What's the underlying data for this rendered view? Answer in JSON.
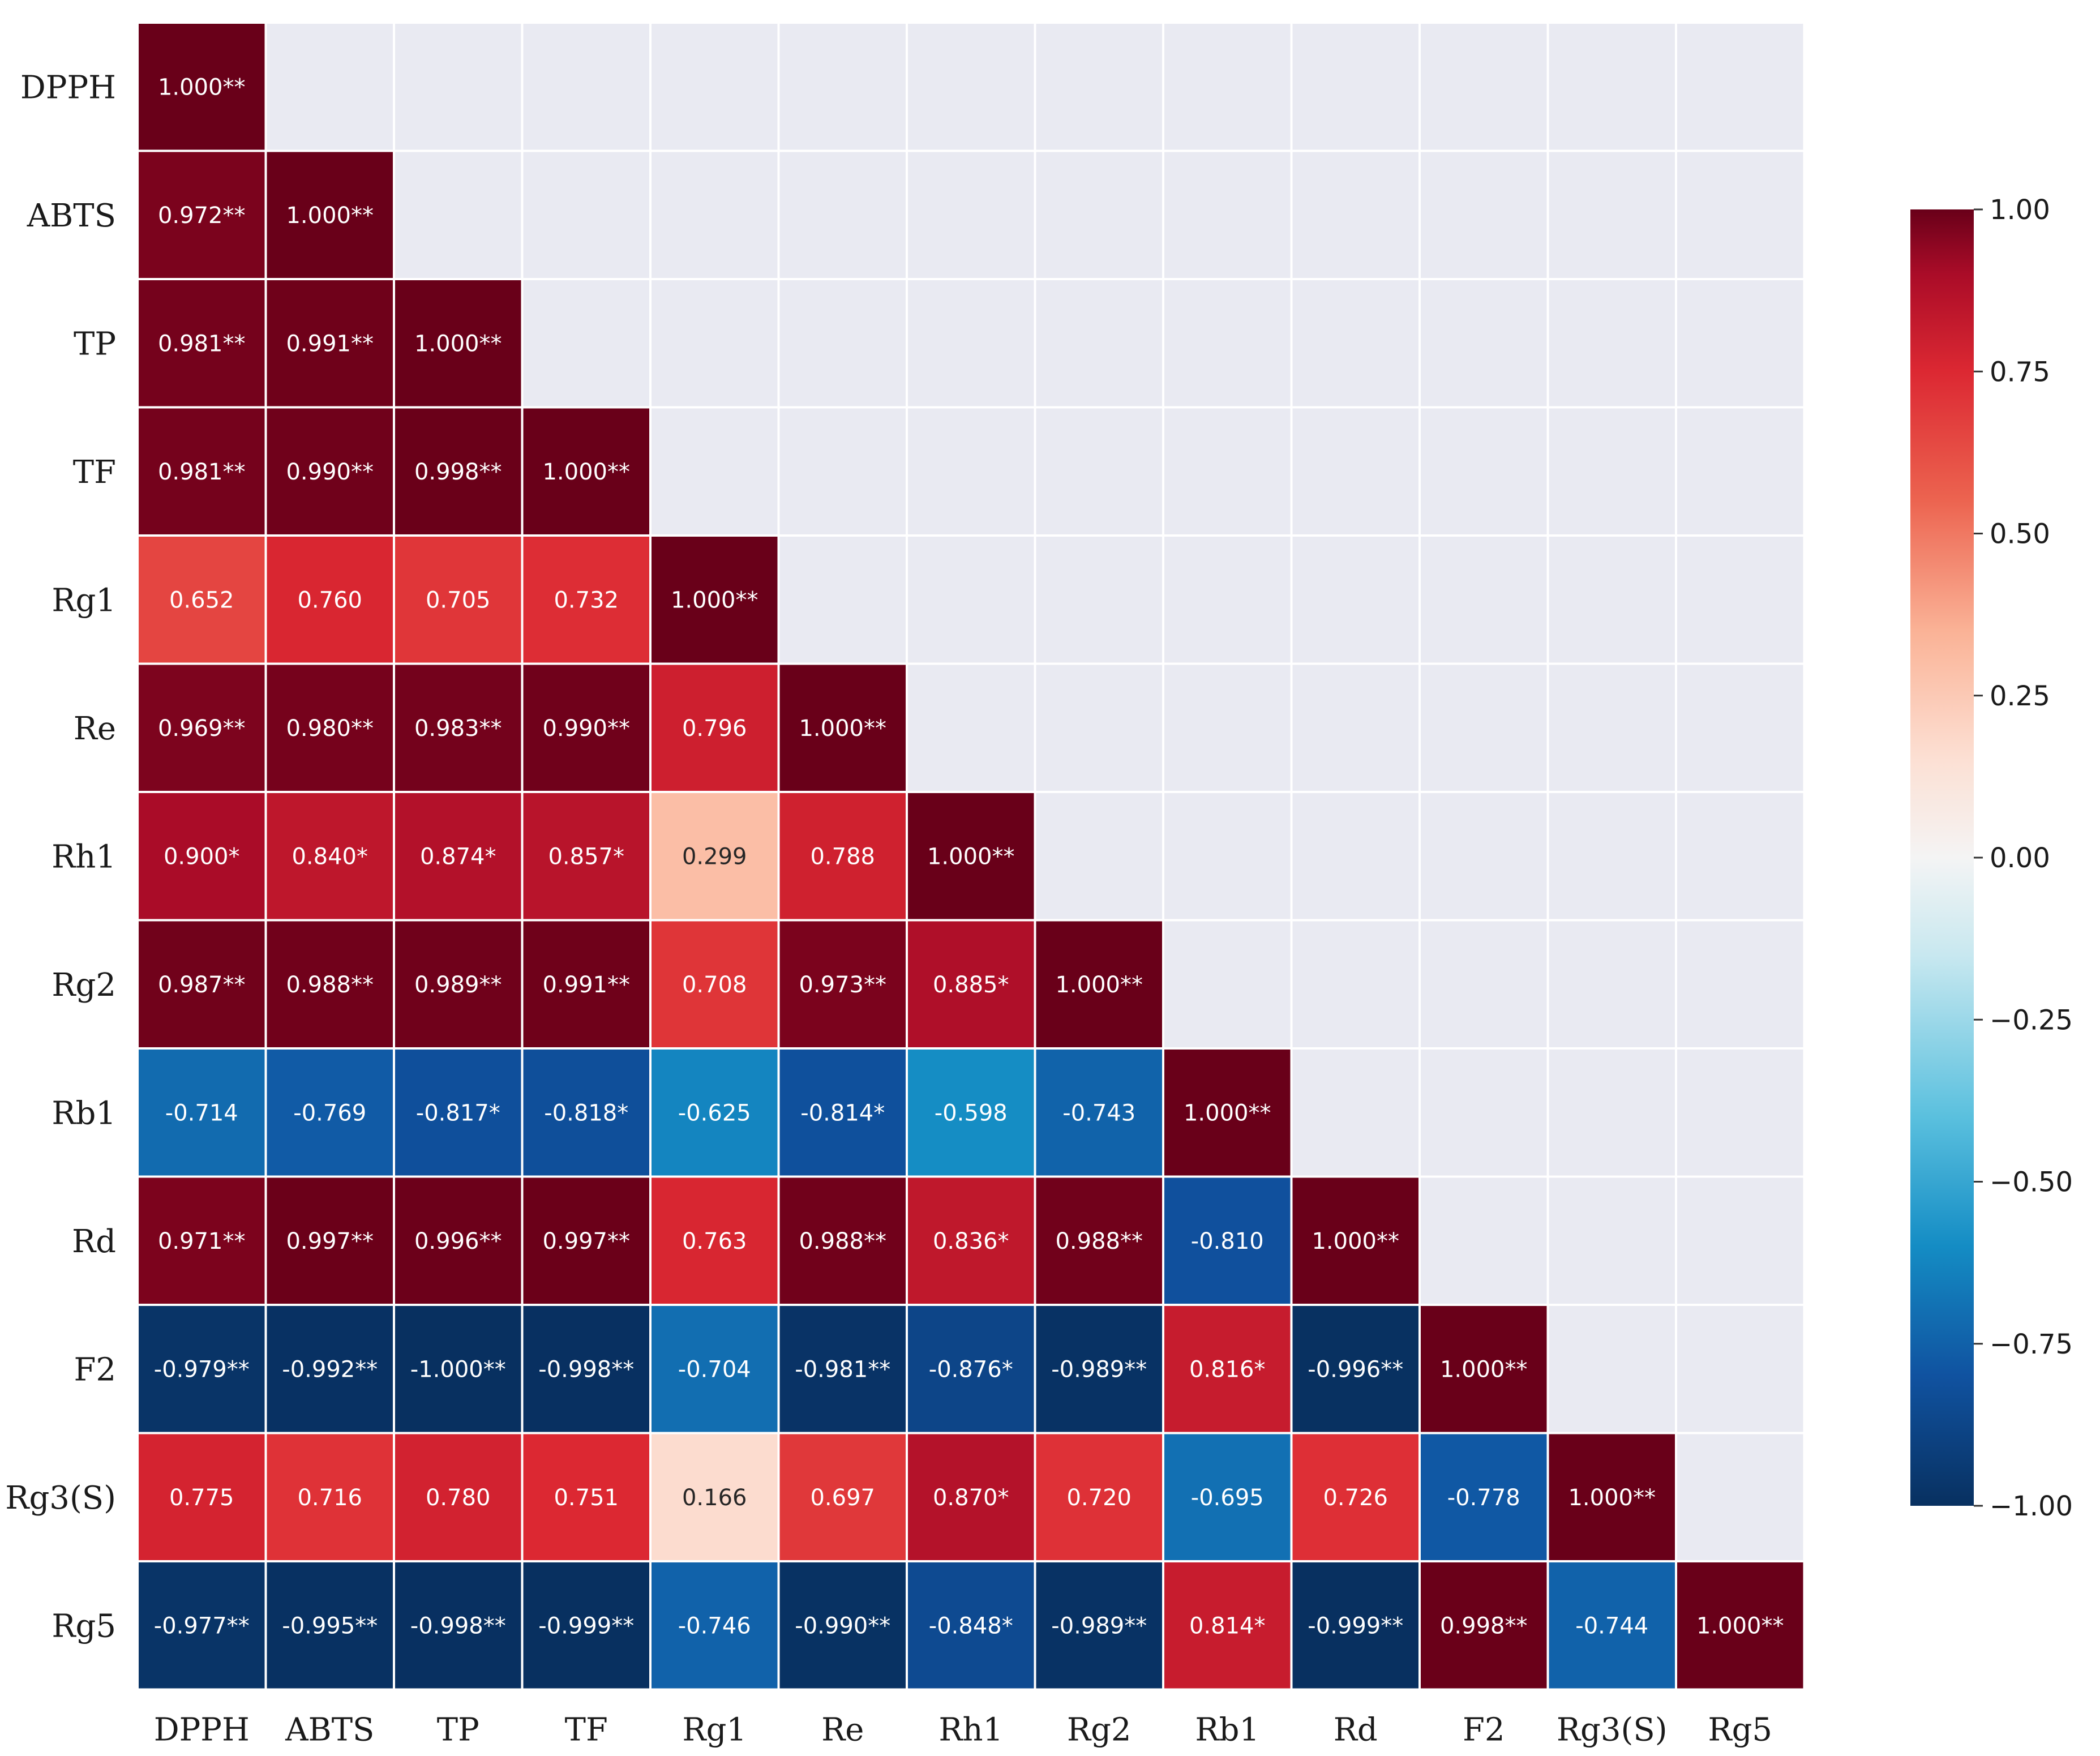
{
  "chart_data": {
    "type": "heatmap",
    "subtype": "lower-triangular correlation matrix",
    "variables": [
      "DPPH",
      "ABTS",
      "TP",
      "TF",
      "Rg1",
      "Re",
      "Rh1",
      "Rg2",
      "Rb1",
      "Rd",
      "F2",
      "Rg3(S)",
      "Rg5"
    ],
    "cells": [
      [
        {
          "v": 1.0,
          "label": "1.000**"
        }
      ],
      [
        {
          "v": 0.972,
          "label": "0.972**"
        },
        {
          "v": 1.0,
          "label": "1.000**"
        }
      ],
      [
        {
          "v": 0.981,
          "label": "0.981**"
        },
        {
          "v": 0.991,
          "label": "0.991**"
        },
        {
          "v": 1.0,
          "label": "1.000**"
        }
      ],
      [
        {
          "v": 0.981,
          "label": "0.981**"
        },
        {
          "v": 0.99,
          "label": "0.990**"
        },
        {
          "v": 0.998,
          "label": "0.998**"
        },
        {
          "v": 1.0,
          "label": "1.000**"
        }
      ],
      [
        {
          "v": 0.652,
          "label": "0.652"
        },
        {
          "v": 0.76,
          "label": "0.760"
        },
        {
          "v": 0.705,
          "label": "0.705"
        },
        {
          "v": 0.732,
          "label": "0.732"
        },
        {
          "v": 1.0,
          "label": "1.000**"
        }
      ],
      [
        {
          "v": 0.969,
          "label": "0.969**"
        },
        {
          "v": 0.98,
          "label": "0.980**"
        },
        {
          "v": 0.983,
          "label": "0.983**"
        },
        {
          "v": 0.99,
          "label": "0.990**"
        },
        {
          "v": 0.796,
          "label": "0.796"
        },
        {
          "v": 1.0,
          "label": "1.000**"
        }
      ],
      [
        {
          "v": 0.9,
          "label": "0.900*"
        },
        {
          "v": 0.84,
          "label": "0.840*"
        },
        {
          "v": 0.874,
          "label": "0.874*"
        },
        {
          "v": 0.857,
          "label": "0.857*"
        },
        {
          "v": 0.299,
          "label": "0.299"
        },
        {
          "v": 0.788,
          "label": "0.788"
        },
        {
          "v": 1.0,
          "label": "1.000**"
        }
      ],
      [
        {
          "v": 0.987,
          "label": "0.987**"
        },
        {
          "v": 0.988,
          "label": "0.988**"
        },
        {
          "v": 0.989,
          "label": "0.989**"
        },
        {
          "v": 0.991,
          "label": "0.991**"
        },
        {
          "v": 0.708,
          "label": "0.708"
        },
        {
          "v": 0.973,
          "label": "0.973**"
        },
        {
          "v": 0.885,
          "label": "0.885*"
        },
        {
          "v": 1.0,
          "label": "1.000**"
        }
      ],
      [
        {
          "v": -0.714,
          "label": "-0.714"
        },
        {
          "v": -0.769,
          "label": "-0.769"
        },
        {
          "v": -0.817,
          "label": "-0.817*"
        },
        {
          "v": -0.818,
          "label": "-0.818*"
        },
        {
          "v": -0.625,
          "label": "-0.625"
        },
        {
          "v": -0.814,
          "label": "-0.814*"
        },
        {
          "v": -0.598,
          "label": "-0.598"
        },
        {
          "v": -0.743,
          "label": "-0.743"
        },
        {
          "v": 1.0,
          "label": "1.000**"
        }
      ],
      [
        {
          "v": 0.971,
          "label": "0.971**"
        },
        {
          "v": 0.997,
          "label": "0.997**"
        },
        {
          "v": 0.996,
          "label": "0.996**"
        },
        {
          "v": 0.997,
          "label": "0.997**"
        },
        {
          "v": 0.763,
          "label": "0.763"
        },
        {
          "v": 0.988,
          "label": "0.988**"
        },
        {
          "v": 0.836,
          "label": "0.836*"
        },
        {
          "v": 0.988,
          "label": "0.988**"
        },
        {
          "v": -0.81,
          "label": "-0.810"
        },
        {
          "v": 1.0,
          "label": "1.000**"
        }
      ],
      [
        {
          "v": -0.979,
          "label": "-0.979**"
        },
        {
          "v": -0.992,
          "label": "-0.992**"
        },
        {
          "v": -1.0,
          "label": "-1.000**"
        },
        {
          "v": -0.998,
          "label": "-0.998**"
        },
        {
          "v": -0.704,
          "label": "-0.704"
        },
        {
          "v": -0.981,
          "label": "-0.981**"
        },
        {
          "v": -0.876,
          "label": "-0.876*"
        },
        {
          "v": -0.989,
          "label": "-0.989**"
        },
        {
          "v": 0.816,
          "label": "0.816*"
        },
        {
          "v": -0.996,
          "label": "-0.996**"
        },
        {
          "v": 1.0,
          "label": "1.000**"
        }
      ],
      [
        {
          "v": 0.775,
          "label": "0.775"
        },
        {
          "v": 0.716,
          "label": "0.716"
        },
        {
          "v": 0.78,
          "label": "0.780"
        },
        {
          "v": 0.751,
          "label": "0.751"
        },
        {
          "v": 0.166,
          "label": "0.166"
        },
        {
          "v": 0.697,
          "label": "0.697"
        },
        {
          "v": 0.87,
          "label": "0.870*"
        },
        {
          "v": 0.72,
          "label": "0.720"
        },
        {
          "v": -0.695,
          "label": "-0.695"
        },
        {
          "v": 0.726,
          "label": "0.726"
        },
        {
          "v": -0.778,
          "label": "-0.778"
        },
        {
          "v": 1.0,
          "label": "1.000**"
        }
      ],
      [
        {
          "v": -0.977,
          "label": "-0.977**"
        },
        {
          "v": -0.995,
          "label": "-0.995**"
        },
        {
          "v": -0.998,
          "label": "-0.998**"
        },
        {
          "v": -0.999,
          "label": "-0.999**"
        },
        {
          "v": -0.746,
          "label": "-0.746"
        },
        {
          "v": -0.99,
          "label": "-0.990**"
        },
        {
          "v": -0.848,
          "label": "-0.848*"
        },
        {
          "v": -0.989,
          "label": "-0.989**"
        },
        {
          "v": 0.814,
          "label": "0.814*"
        },
        {
          "v": -0.999,
          "label": "-0.999**"
        },
        {
          "v": 0.998,
          "label": "0.998**"
        },
        {
          "v": -0.744,
          "label": "-0.744"
        },
        {
          "v": 1.0,
          "label": "1.000**"
        }
      ]
    ],
    "value_range": [
      -1.0,
      1.0
    ],
    "colormap": "RdBu_r",
    "colorbar": {
      "ticks": [
        1.0,
        0.75,
        0.5,
        0.25,
        0.0,
        -0.25,
        -0.5,
        -0.75,
        -1.0
      ],
      "tick_labels": [
        "1.00",
        "0.75",
        "0.50",
        "0.25",
        "0.00",
        "−0.25",
        "−0.50",
        "−0.75",
        "−1.00"
      ]
    },
    "masked_cell_color": "#e9eaf2",
    "title": "",
    "xlabel": "",
    "ylabel": ""
  }
}
